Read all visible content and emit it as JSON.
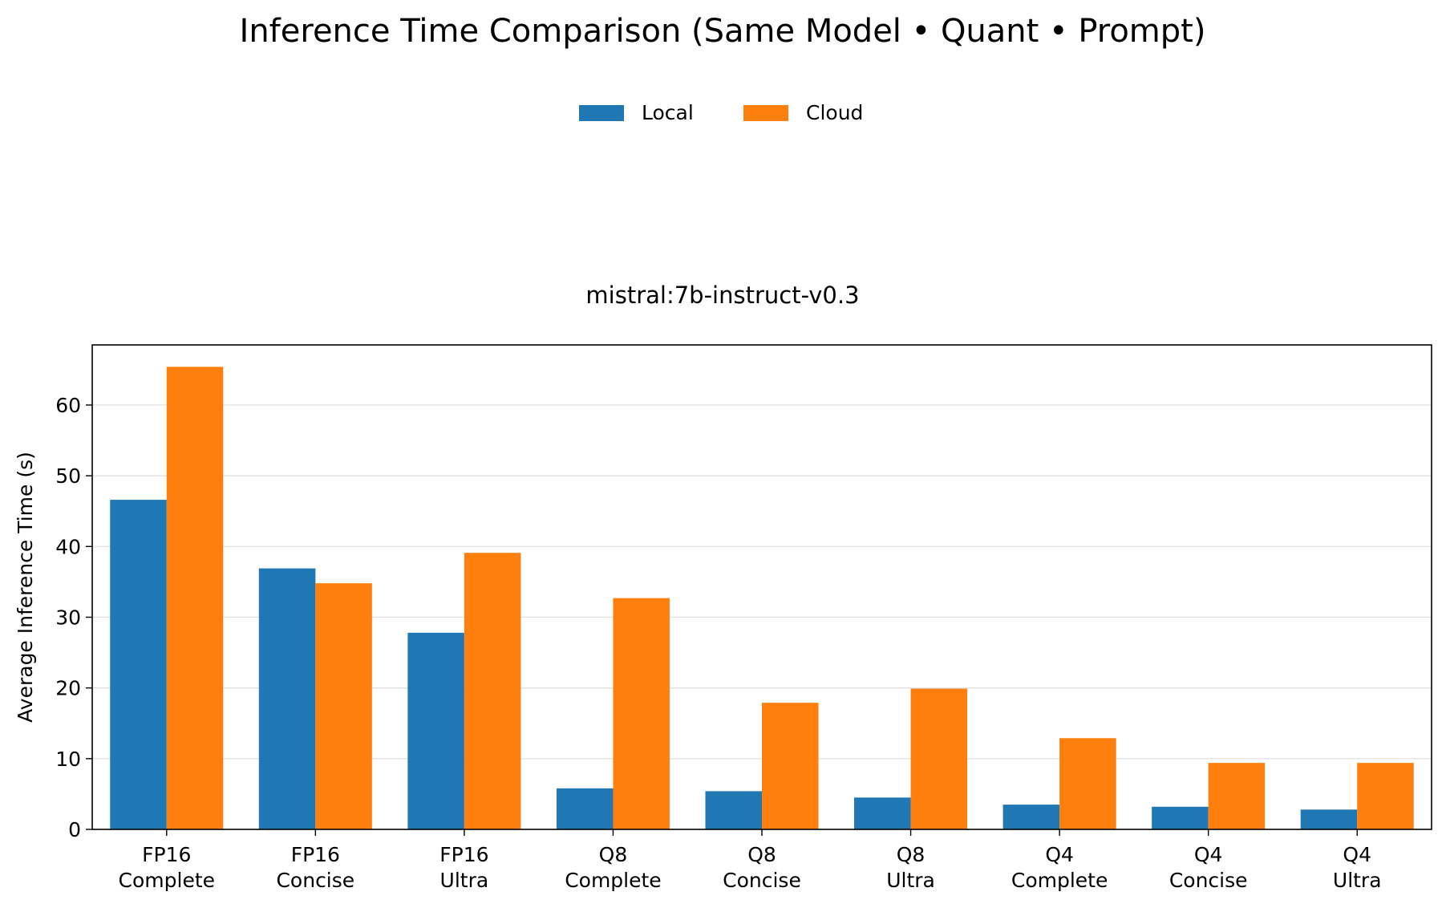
{
  "chart_data": {
    "type": "bar",
    "title": "Inference Time Comparison (Same Model • Quant • Prompt)",
    "subtitle": "mistral:7b-instruct-v0.3",
    "xlabel": "",
    "ylabel": "Average Inference Time (s)",
    "ylim": [
      0,
      68.5
    ],
    "yticks": [
      0,
      10,
      20,
      30,
      40,
      50,
      60
    ],
    "grid": "horizontal",
    "legend_position": "top-center",
    "categories": [
      [
        "FP16",
        "Complete"
      ],
      [
        "FP16",
        "Concise"
      ],
      [
        "FP16",
        "Ultra"
      ],
      [
        "Q8",
        "Complete"
      ],
      [
        "Q8",
        "Concise"
      ],
      [
        "Q8",
        "Ultra"
      ],
      [
        "Q4",
        "Complete"
      ],
      [
        "Q4",
        "Concise"
      ],
      [
        "Q4",
        "Ultra"
      ]
    ],
    "series": [
      {
        "name": "Local",
        "color": "#1f77b4",
        "values": [
          46.6,
          36.9,
          27.8,
          5.8,
          5.4,
          4.5,
          3.5,
          3.2,
          2.8
        ]
      },
      {
        "name": "Cloud",
        "color": "#ff7f0e",
        "values": [
          65.4,
          34.8,
          39.1,
          32.7,
          17.9,
          19.9,
          12.9,
          9.4,
          9.4
        ]
      }
    ]
  }
}
